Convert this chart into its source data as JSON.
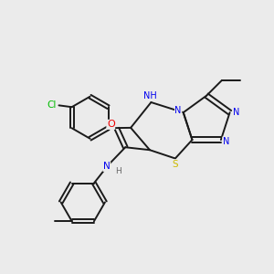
{
  "background_color": "#ebebeb",
  "bond_color": "#1a1a1a",
  "atom_colors": {
    "N": "#0000ee",
    "O": "#ee0000",
    "S": "#ccbb00",
    "Cl": "#00bb00",
    "H": "#666666",
    "C": "#1a1a1a"
  },
  "figsize": [
    3.0,
    3.0
  ],
  "dpi": 100
}
